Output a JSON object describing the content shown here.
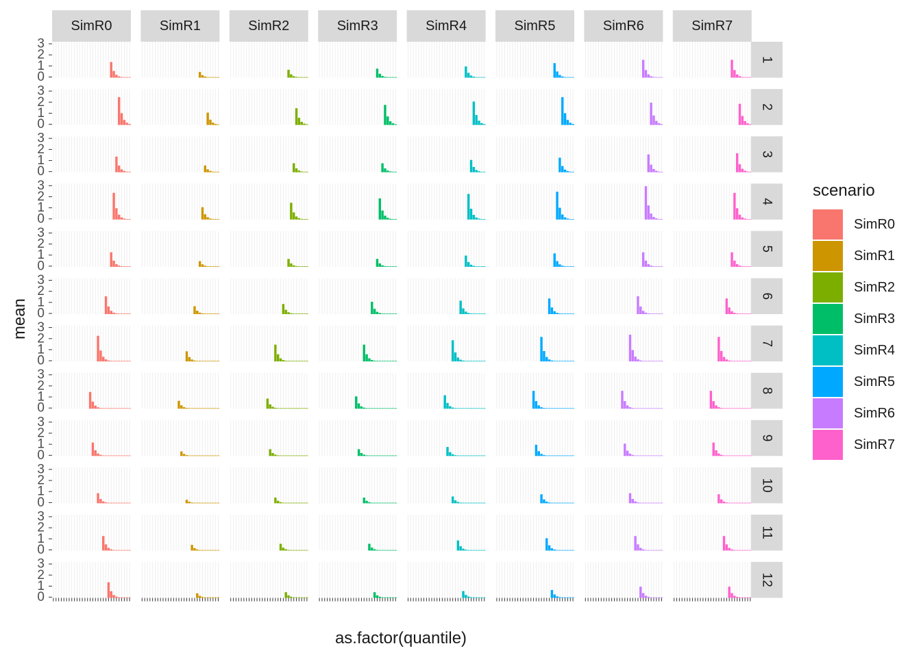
{
  "chart_data": {
    "type": "bar",
    "facet_layout": "grid",
    "xlabel": "as.factor(quantile)",
    "ylabel": "mean",
    "ylim": [
      0,
      3
    ],
    "y_ticks": [
      "0",
      "1",
      "2",
      "3"
    ],
    "columns": [
      "SimR0",
      "SimR1",
      "SimR2",
      "SimR3",
      "SimR4",
      "SimR5",
      "SimR6",
      "SimR7"
    ],
    "rows": [
      "1",
      "2",
      "3",
      "4",
      "5",
      "6",
      "7",
      "8",
      "9",
      "10",
      "11",
      "12"
    ],
    "legend": {
      "title": "scenario",
      "position": "right",
      "items": [
        "SimR0",
        "SimR1",
        "SimR2",
        "SimR3",
        "SimR4",
        "SimR5",
        "SimR6",
        "SimR7"
      ]
    },
    "colors": {
      "SimR0": "#F8766D",
      "SimR1": "#CD9600",
      "SimR2": "#7CAE00",
      "SimR3": "#00BE67",
      "SimR4": "#00BFC4",
      "SimR5": "#00A9FF",
      "SimR6": "#C77CFF",
      "SimR7": "#FF61CC"
    },
    "grid": true,
    "panel_background": "#ffffff",
    "strip_fill": "#D9D9D9",
    "max_mean_by_row": [
      [
        1.4,
        0.5,
        0.7,
        0.8,
        1.0,
        1.3,
        1.6,
        1.6
      ],
      [
        2.5,
        1.1,
        1.5,
        1.8,
        2.1,
        2.5,
        2.0,
        1.9
      ],
      [
        1.4,
        0.6,
        0.8,
        0.8,
        1.1,
        1.3,
        1.6,
        1.7
      ],
      [
        2.4,
        1.1,
        1.5,
        1.9,
        2.3,
        2.5,
        3.0,
        2.4
      ],
      [
        1.3,
        0.5,
        0.7,
        0.7,
        1.0,
        1.2,
        1.3,
        1.3
      ],
      [
        1.6,
        0.7,
        0.9,
        1.1,
        1.2,
        1.4,
        1.6,
        1.4
      ],
      [
        2.3,
        0.9,
        1.5,
        1.5,
        1.9,
        2.2,
        2.4,
        2.2
      ],
      [
        1.5,
        0.7,
        0.9,
        1.1,
        1.2,
        1.6,
        1.6,
        1.6
      ],
      [
        1.2,
        0.4,
        0.6,
        0.6,
        0.8,
        1.0,
        1.1,
        1.2
      ],
      [
        0.9,
        0.3,
        0.5,
        0.5,
        0.6,
        0.8,
        0.9,
        0.8
      ],
      [
        1.3,
        0.5,
        0.6,
        0.6,
        0.9,
        1.1,
        1.3,
        1.3
      ],
      [
        1.4,
        0.4,
        0.5,
        0.5,
        0.6,
        0.7,
        1.0,
        1.0
      ]
    ],
    "n_quantiles_by_row": [
      8,
      5,
      6,
      7,
      8,
      10,
      13,
      16,
      15,
      13,
      11,
      9
    ]
  }
}
